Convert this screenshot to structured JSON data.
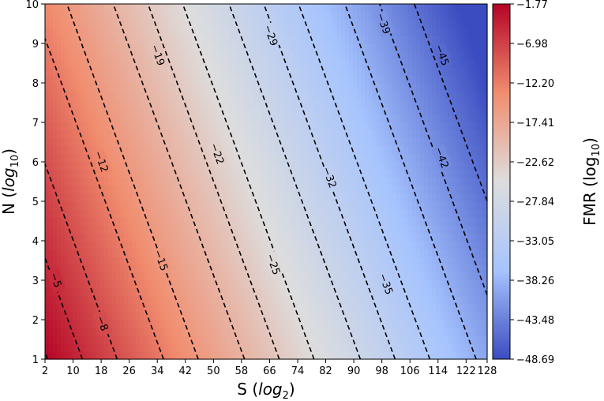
{
  "chart_data": {
    "type": "heatmap",
    "title": "",
    "xlabel": "S",
    "xlabel_sub": "2",
    "ylabel": "N",
    "ylabel_sub": "10",
    "colorbar_label": "FMR",
    "colorbar_label_sub": "10",
    "xlim": [
      2,
      128
    ],
    "ylim": [
      1,
      10
    ],
    "xticks": [
      2,
      10,
      18,
      26,
      34,
      42,
      50,
      58,
      66,
      74,
      82,
      90,
      98,
      106,
      114,
      122,
      128
    ],
    "yticks": [
      1,
      2,
      3,
      4,
      5,
      6,
      7,
      8,
      9,
      10
    ],
    "colorbar_range": [
      -48.69,
      -1.77
    ],
    "colorbar_ticks": [
      "-1.77",
      "-6.98",
      "-12.20",
      "-17.41",
      "-22.62",
      "-27.84",
      "-33.05",
      "-38.26",
      "-43.48",
      "-48.69"
    ],
    "colormap": [
      "#b40426",
      "#f18d6f",
      "#dddddd",
      "#a6c4fe",
      "#3b4cc0"
    ],
    "contour_levels": [
      -2,
      -5,
      -8,
      -12,
      -15,
      -19,
      -22,
      -25,
      -29,
      -32,
      -35,
      -39,
      -42,
      -45
    ],
    "contour_labels": [
      {
        "text": "-5",
        "x": 4.9,
        "y": 3.0
      },
      {
        "text": "-8",
        "x": 18.2,
        "y": 1.9
      },
      {
        "text": "-12",
        "x": 17.9,
        "y": 6.0
      },
      {
        "text": "-15",
        "x": 34.9,
        "y": 3.5
      },
      {
        "text": "-19",
        "x": 34.0,
        "y": 8.7
      },
      {
        "text": "-22",
        "x": 50.9,
        "y": 6.2
      },
      {
        "text": "-25",
        "x": 66.9,
        "y": 3.4
      },
      {
        "text": "-29",
        "x": 66.2,
        "y": 9.2
      },
      {
        "text": "-32",
        "x": 82.9,
        "y": 5.6
      },
      {
        "text": "-35",
        "x": 99.0,
        "y": 2.9
      },
      {
        "text": "-39",
        "x": 98.3,
        "y": 9.5
      },
      {
        "text": "-42",
        "x": 114.9,
        "y": 6.1
      },
      {
        "text": "-45",
        "x": 115.0,
        "y": 8.7
      }
    ],
    "contour_style": "black dashed",
    "grid": false,
    "legend": "none"
  }
}
